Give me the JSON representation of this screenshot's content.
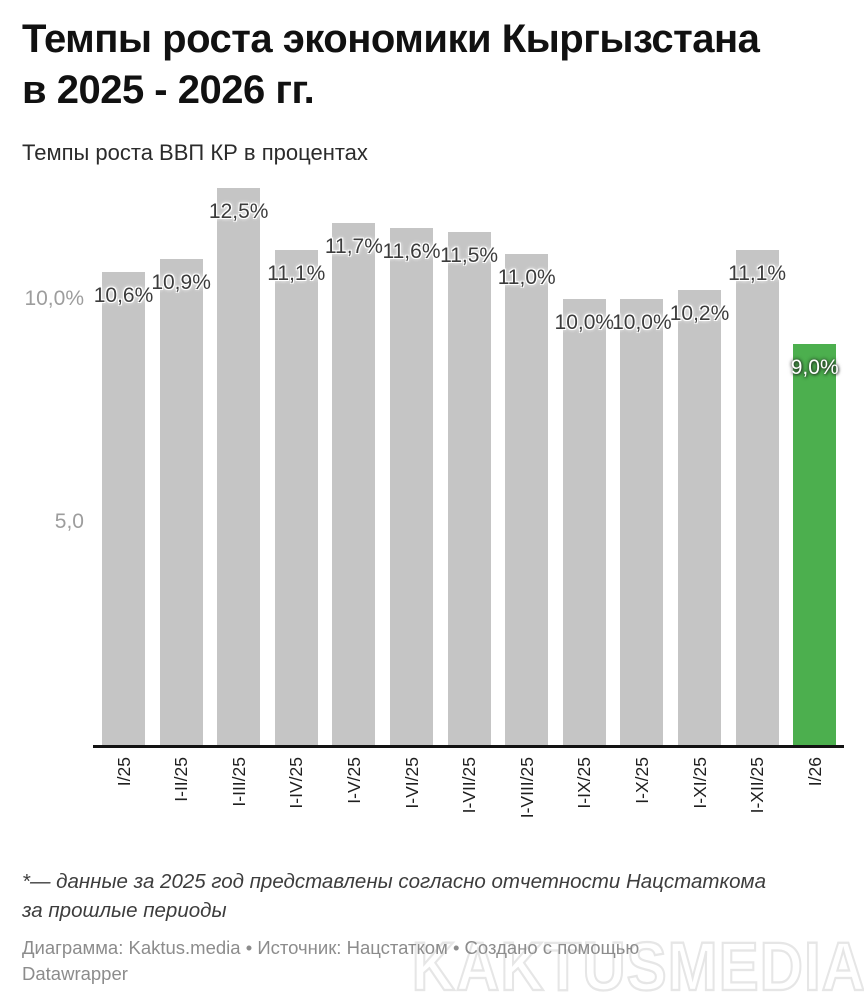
{
  "header": {
    "title": "Темпы роста экономики Кыргызстана\nв 2025 - 2026 гг.",
    "subtitle": "Темпы роста ВВП КР в процентах"
  },
  "chart_data": {
    "type": "bar",
    "title": "Темпы роста экономики Кыргызстана в 2025 - 2026 гг.",
    "subtitle": "Темпы роста ВВП КР в процентах",
    "categories": [
      "I/25",
      "I-II/25",
      "I-III/25",
      "I-IV/25",
      "I-V/25",
      "I-VI/25",
      "I-VII/25",
      "I-VIII/25",
      "I-IX/25",
      "I-X/25",
      "I-XI/25",
      "I-XII/25",
      "I/26"
    ],
    "values": [
      10.6,
      10.9,
      12.5,
      11.1,
      11.7,
      11.6,
      11.5,
      11.0,
      10.0,
      10.0,
      10.2,
      11.1,
      9.0
    ],
    "value_labels": [
      "10,6%",
      "10,9%",
      "12,5%",
      "11,1%",
      "11,7%",
      "11,6%",
      "11,5%",
      "11,0%",
      "10,0%",
      "10,0%",
      "10,2%",
      "11,1%",
      "9,0%"
    ],
    "xlabel": "",
    "ylabel": "",
    "ylim": [
      0,
      13
    ],
    "y_ticks": [
      {
        "value": 10,
        "label": "10,0%"
      },
      {
        "value": 5,
        "label": "5,0"
      }
    ],
    "grid": false,
    "legend": "none",
    "bar_color": "#c5c5c5",
    "highlight_index": 12,
    "highlight_color": "#4caf4e",
    "axis_color": "#131313"
  },
  "footer": {
    "footnote": "*— данные за 2025 год представлены согласно отчетности Нацстаткома\nза прошлые периоды",
    "credits": "Диаграмма: Kaktus.media • Источник: Нацстатком • Создано с помощью\nDatawrapper",
    "watermark": "KAKTUSMEDIA"
  }
}
